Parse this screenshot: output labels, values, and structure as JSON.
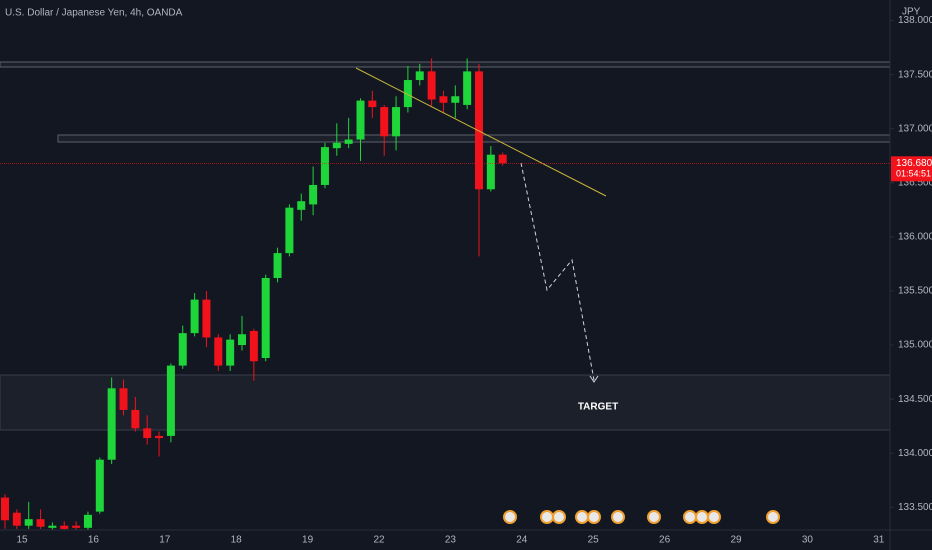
{
  "chart_data": {
    "type": "candlestick",
    "title": "U.S. Dollar / Japanese Yen, 4h, OANDA",
    "currency": "JPY",
    "annotation": "TARGET",
    "price_label": "136.680",
    "countdown": "01:54:51",
    "up_color": "#1ed63a",
    "down_color": "#f2121b",
    "open": [
      133.59,
      133.45,
      133.33,
      133.39,
      133.31,
      133.33,
      133.33,
      133.31,
      133.46,
      133.94,
      134.6,
      134.4,
      134.23,
      134.16,
      134.16,
      134.81,
      135.11,
      135.42,
      135.07,
      134.81,
      135.0,
      135.13,
      134.88,
      135.62,
      135.85,
      136.25,
      136.3,
      136.48,
      136.82,
      136.86,
      136.9,
      137.26,
      137.2,
      136.93,
      137.2,
      137.45,
      137.53,
      137.3,
      137.24,
      137.22,
      137.53,
      136.44,
      136.76
    ],
    "high": [
      133.62,
      133.48,
      133.55,
      133.48,
      133.36,
      133.37,
      133.37,
      133.46,
      133.96,
      134.7,
      134.68,
      134.52,
      134.35,
      134.2,
      134.83,
      135.18,
      135.48,
      135.5,
      135.1,
      135.1,
      135.27,
      135.15,
      135.65,
      135.9,
      136.3,
      136.4,
      136.65,
      136.87,
      137.05,
      137.1,
      137.28,
      137.35,
      137.22,
      137.3,
      137.58,
      137.6,
      137.65,
      137.35,
      137.4,
      137.65,
      137.6,
      136.84,
      136.78
    ],
    "low": [
      133.3,
      133.3,
      133.3,
      133.3,
      133.29,
      133.29,
      133.29,
      133.29,
      133.44,
      133.9,
      134.35,
      134.2,
      134.08,
      133.97,
      134.1,
      134.78,
      135.08,
      134.98,
      134.76,
      134.76,
      134.95,
      134.67,
      134.85,
      135.58,
      135.82,
      136.15,
      136.2,
      136.45,
      136.75,
      136.82,
      136.7,
      137.1,
      136.75,
      136.8,
      137.15,
      137.4,
      137.2,
      137.15,
      137.1,
      137.18,
      135.82,
      136.42,
      136.66
    ],
    "close": [
      133.38,
      133.33,
      133.39,
      133.32,
      133.33,
      133.3,
      133.31,
      133.43,
      133.94,
      134.6,
      134.4,
      134.23,
      134.14,
      134.14,
      134.81,
      135.11,
      135.42,
      135.07,
      134.81,
      135.05,
      135.1,
      134.85,
      135.62,
      135.85,
      136.27,
      136.33,
      136.48,
      136.83,
      136.87,
      136.9,
      137.26,
      137.2,
      136.93,
      137.2,
      137.45,
      137.53,
      137.27,
      137.24,
      137.3,
      137.53,
      136.44,
      136.76,
      136.68
    ],
    "xticks": [
      "15",
      "16",
      "17",
      "18",
      "19",
      "22",
      "23",
      "24",
      "25",
      "26",
      "29",
      "30",
      "31"
    ],
    "ylim": [
      133.29,
      138.19
    ],
    "yticks": [
      {
        "value": 133.5,
        "label": "133.500"
      },
      {
        "value": 134,
        "label": "134.000"
      },
      {
        "value": 134.5,
        "label": "134.500"
      },
      {
        "value": 135,
        "label": "135.000"
      },
      {
        "value": 135.5,
        "label": "135.500"
      },
      {
        "value": 136,
        "label": "136.000"
      },
      {
        "value": 136.5,
        "label": "136.500"
      },
      {
        "value": 137,
        "label": "137.000"
      },
      {
        "value": 137.5,
        "label": "137.500"
      },
      {
        "value": 138,
        "label": "138.000"
      }
    ]
  }
}
